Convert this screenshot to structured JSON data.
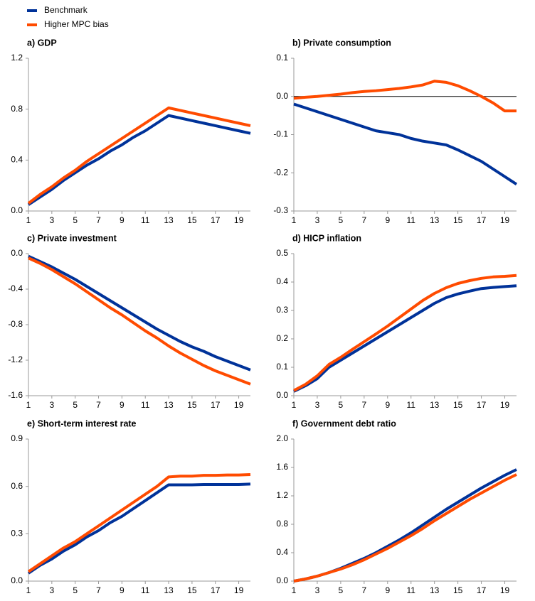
{
  "legend": [
    {
      "name": "Benchmark",
      "color": "#003299"
    },
    {
      "name": "Higher MPC bias",
      "color": "#ff4b00"
    }
  ],
  "chart_data": [
    {
      "type": "line",
      "title": "a) GDP",
      "x": [
        1,
        2,
        3,
        4,
        5,
        6,
        7,
        8,
        9,
        10,
        11,
        12,
        13,
        14,
        15,
        16,
        17,
        18,
        19,
        20
      ],
      "xlim": [
        1,
        20
      ],
      "xticks": [
        1,
        3,
        5,
        7,
        9,
        11,
        13,
        15,
        17,
        19
      ],
      "ylim": [
        0,
        1.2
      ],
      "yticks": [
        {
          "value": 0,
          "label": "0.0"
        },
        0.4,
        0.8,
        1.2
      ],
      "series": [
        {
          "values": [
            0.05,
            0.11,
            0.17,
            0.24,
            0.3,
            0.36,
            0.41,
            0.47,
            0.52,
            0.58,
            0.63,
            0.69,
            0.75,
            0.73,
            0.71,
            0.69,
            0.67,
            0.65,
            0.63,
            0.61
          ]
        },
        {
          "values": [
            0.06,
            0.13,
            0.19,
            0.26,
            0.32,
            0.39,
            0.45,
            0.51,
            0.57,
            0.63,
            0.69,
            0.75,
            0.81,
            0.79,
            0.77,
            0.75,
            0.73,
            0.71,
            0.69,
            0.67
          ]
        }
      ]
    },
    {
      "type": "line",
      "title": "b) Private consumption",
      "x": [
        1,
        2,
        3,
        4,
        5,
        6,
        7,
        8,
        9,
        10,
        11,
        12,
        13,
        14,
        15,
        16,
        17,
        18,
        19,
        20
      ],
      "xlim": [
        1,
        20
      ],
      "xticks": [
        1,
        3,
        5,
        7,
        9,
        11,
        13,
        15,
        17,
        19
      ],
      "ylim": [
        -0.3,
        0.1
      ],
      "yticks": [
        -0.3,
        -0.2,
        -0.1,
        {
          "value": 0,
          "label": "0.0"
        },
        0.1
      ],
      "zero_line": true,
      "series": [
        {
          "values": [
            -0.02,
            -0.03,
            -0.04,
            -0.05,
            -0.06,
            -0.07,
            -0.08,
            -0.09,
            -0.095,
            -0.1,
            -0.11,
            -0.117,
            -0.122,
            -0.127,
            -0.14,
            -0.155,
            -0.17,
            -0.19,
            -0.21,
            -0.23
          ]
        },
        {
          "values": [
            -0.005,
            -0.002,
            0,
            0.003,
            0.006,
            0.01,
            0.013,
            0.015,
            0.018,
            0.021,
            0.025,
            0.03,
            0.04,
            0.037,
            0.028,
            0.015,
            0,
            -0.017,
            -0.038,
            -0.038
          ]
        }
      ]
    },
    {
      "type": "line",
      "title": "c) Private investment",
      "x": [
        1,
        2,
        3,
        4,
        5,
        6,
        7,
        8,
        9,
        10,
        11,
        12,
        13,
        14,
        15,
        16,
        17,
        18,
        19,
        20
      ],
      "xlim": [
        1,
        20
      ],
      "xticks": [
        1,
        3,
        5,
        7,
        9,
        11,
        13,
        15,
        17,
        19
      ],
      "ylim": [
        -1.6,
        0
      ],
      "yticks": [
        -1.6,
        -1.2,
        -0.8,
        -0.4,
        {
          "value": 0,
          "label": "0.0"
        }
      ],
      "series": [
        {
          "values": [
            -0.03,
            -0.09,
            -0.15,
            -0.22,
            -0.29,
            -0.37,
            -0.45,
            -0.53,
            -0.61,
            -0.69,
            -0.77,
            -0.85,
            -0.92,
            -0.99,
            -1.05,
            -1.1,
            -1.16,
            -1.21,
            -1.26,
            -1.31
          ]
        },
        {
          "values": [
            -0.05,
            -0.11,
            -0.18,
            -0.26,
            -0.34,
            -0.43,
            -0.52,
            -0.61,
            -0.69,
            -0.78,
            -0.87,
            -0.95,
            -1.04,
            -1.12,
            -1.19,
            -1.26,
            -1.32,
            -1.37,
            -1.42,
            -1.47
          ]
        }
      ]
    },
    {
      "type": "line",
      "title": "d) HICP inflation",
      "x": [
        1,
        2,
        3,
        4,
        5,
        6,
        7,
        8,
        9,
        10,
        11,
        12,
        13,
        14,
        15,
        16,
        17,
        18,
        19,
        20
      ],
      "xlim": [
        1,
        20
      ],
      "xticks": [
        1,
        3,
        5,
        7,
        9,
        11,
        13,
        15,
        17,
        19
      ],
      "ylim": [
        0,
        0.5
      ],
      "yticks": [
        {
          "value": 0,
          "label": "0.0"
        },
        0.1,
        0.2,
        0.3,
        0.4,
        0.5
      ],
      "series": [
        {
          "values": [
            0.015,
            0.035,
            0.06,
            0.1,
            0.125,
            0.15,
            0.175,
            0.2,
            0.225,
            0.25,
            0.275,
            0.3,
            0.325,
            0.345,
            0.358,
            0.368,
            0.377,
            0.381,
            0.384,
            0.387
          ]
        },
        {
          "values": [
            0.018,
            0.04,
            0.07,
            0.11,
            0.135,
            0.163,
            0.19,
            0.217,
            0.245,
            0.275,
            0.305,
            0.335,
            0.36,
            0.38,
            0.395,
            0.405,
            0.413,
            0.418,
            0.42,
            0.423
          ]
        }
      ]
    },
    {
      "type": "line",
      "title": "e) Short-term interest rate",
      "x": [
        1,
        2,
        3,
        4,
        5,
        6,
        7,
        8,
        9,
        10,
        11,
        12,
        13,
        14,
        15,
        16,
        17,
        18,
        19,
        20
      ],
      "xlim": [
        1,
        20
      ],
      "xticks": [
        1,
        3,
        5,
        7,
        9,
        11,
        13,
        15,
        17,
        19
      ],
      "ylim": [
        0,
        0.9
      ],
      "yticks": [
        {
          "value": 0,
          "label": "0.0"
        },
        0.3,
        0.6,
        0.9
      ],
      "series": [
        {
          "values": [
            0.05,
            0.1,
            0.14,
            0.19,
            0.23,
            0.28,
            0.32,
            0.37,
            0.41,
            0.46,
            0.51,
            0.56,
            0.61,
            0.61,
            0.61,
            0.612,
            0.612,
            0.612,
            0.612,
            0.615
          ]
        },
        {
          "values": [
            0.06,
            0.11,
            0.16,
            0.21,
            0.25,
            0.3,
            0.35,
            0.4,
            0.45,
            0.5,
            0.55,
            0.6,
            0.66,
            0.665,
            0.665,
            0.67,
            0.67,
            0.672,
            0.672,
            0.675
          ]
        }
      ]
    },
    {
      "type": "line",
      "title": "f) Government debt ratio",
      "x": [
        1,
        2,
        3,
        4,
        5,
        6,
        7,
        8,
        9,
        10,
        11,
        12,
        13,
        14,
        15,
        16,
        17,
        18,
        19,
        20
      ],
      "xlim": [
        1,
        20
      ],
      "xticks": [
        1,
        3,
        5,
        7,
        9,
        11,
        13,
        15,
        17,
        19
      ],
      "ylim": [
        0,
        2
      ],
      "yticks": [
        {
          "value": 0,
          "label": "0.0"
        },
        0.4,
        0.8,
        1.2,
        1.6,
        {
          "value": 2,
          "label": "2.0"
        }
      ],
      "series": [
        {
          "values": [
            0,
            0.03,
            0.07,
            0.12,
            0.18,
            0.25,
            0.32,
            0.4,
            0.49,
            0.58,
            0.68,
            0.79,
            0.9,
            1.01,
            1.11,
            1.21,
            1.31,
            1.4,
            1.49,
            1.57
          ]
        },
        {
          "values": [
            0,
            0.03,
            0.07,
            0.12,
            0.17,
            0.23,
            0.3,
            0.38,
            0.46,
            0.55,
            0.64,
            0.74,
            0.85,
            0.95,
            1.05,
            1.15,
            1.24,
            1.33,
            1.42,
            1.5
          ]
        }
      ]
    }
  ]
}
